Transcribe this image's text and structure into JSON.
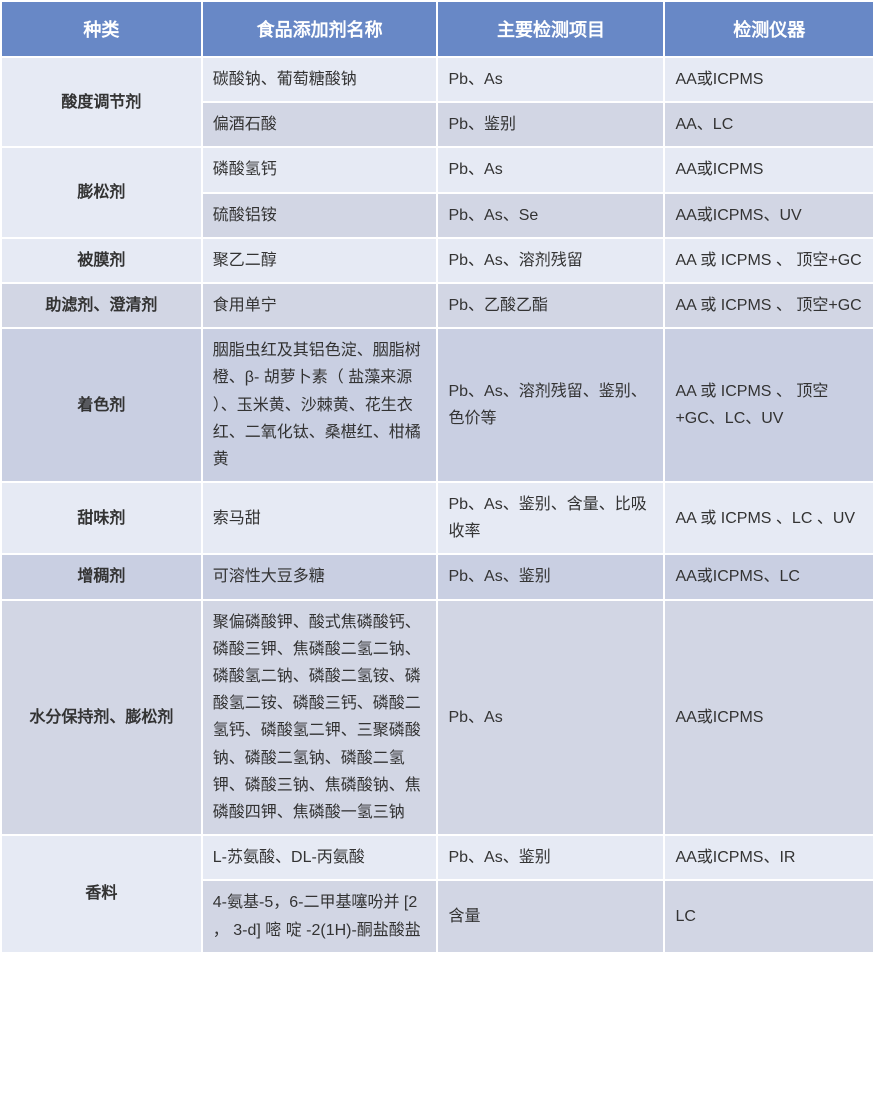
{
  "table": {
    "headers": {
      "category": "种类",
      "additive_name": "食品添加剂名称",
      "test_items": "主要检测项目",
      "instruments": "检测仪器"
    },
    "colors": {
      "header_bg": "#6888c6",
      "header_text": "#ffffff",
      "row_light": "#e6eaf4",
      "row_lighter": "#d2d6e4",
      "row_dark": "#c9cfe2",
      "border": "#ffffff",
      "text": "#333333"
    },
    "fontsize": {
      "header": 18,
      "cell": 16
    },
    "column_widths": [
      "23%",
      "27%",
      "26%",
      "24%"
    ],
    "rows": [
      {
        "category": "酸度调节剂",
        "category_rowspan": 2,
        "name": "碳酸钠、葡萄糖酸钠",
        "test": "Pb、As",
        "instrument": "AA或ICPMS",
        "bg": "row-light"
      },
      {
        "name": "偏酒石酸",
        "test": "Pb、鉴别",
        "instrument": "AA、LC",
        "bg": "row-lighter"
      },
      {
        "category": "膨松剂",
        "category_rowspan": 2,
        "name": "磷酸氢钙",
        "test": "Pb、As",
        "instrument": "AA或ICPMS",
        "bg": "row-light"
      },
      {
        "name": "硫酸铝铵",
        "test": "Pb、As、Se",
        "instrument": "AA或ICPMS、UV",
        "bg": "row-lighter"
      },
      {
        "category": "被膜剂",
        "category_rowspan": 1,
        "name": "聚乙二醇",
        "test": "Pb、As、溶剂残留",
        "instrument": "AA 或 ICPMS 、 顶空+GC",
        "bg": "row-light"
      },
      {
        "category": "助滤剂、澄清剂",
        "category_rowspan": 1,
        "name": "食用单宁",
        "test": "Pb、乙酸乙酯",
        "instrument": "AA 或 ICPMS 、 顶空+GC",
        "bg": "row-lighter"
      },
      {
        "category": "着色剂",
        "category_rowspan": 1,
        "name": "胭脂虫红及其铝色淀、胭脂树橙、β- 胡萝卜素（ 盐藻来源 ）、玉米黄、沙棘黄、花生衣红、二氧化钛、桑椹红、柑橘黄",
        "test": "Pb、As、溶剂残留、鉴别、色价等",
        "instrument": "AA 或 ICPMS 、 顶空+GC、LC、UV",
        "bg": "row-dark"
      },
      {
        "category": "甜味剂",
        "category_rowspan": 1,
        "name": "索马甜",
        "test": "Pb、As、鉴别、含量、比吸收率",
        "instrument": "AA 或 ICPMS 、LC 、UV",
        "bg": "row-light"
      },
      {
        "category": "增稠剂",
        "category_rowspan": 1,
        "name": "可溶性大豆多糖",
        "test": "Pb、As、鉴别",
        "instrument": "AA或ICPMS、LC",
        "bg": "row-dark"
      },
      {
        "category": "水分保持剂、膨松剂",
        "category_rowspan": 1,
        "name": "聚偏磷酸钾、酸式焦磷酸钙、磷酸三钾、焦磷酸二氢二钠、磷酸氢二钠、磷酸二氢铵、磷酸氢二铵、磷酸三钙、磷酸二氢钙、磷酸氢二钾、三聚磷酸钠、磷酸二氢钠、磷酸二氢钾、磷酸三钠、焦磷酸钠、焦磷酸四钾、焦磷酸一氢三钠",
        "test": "Pb、As",
        "instrument": "AA或ICPMS",
        "bg": "row-lighter"
      },
      {
        "category": "香料",
        "category_rowspan": 2,
        "name": "L-苏氨酸、DL-丙氨酸",
        "test": "Pb、As、鉴别",
        "instrument": "AA或ICPMS、IR",
        "bg": "row-light"
      },
      {
        "name": "4-氨基-5，6-二甲基噻吩并 [2 ， 3-d] 嘧 啶 -2(1H)-酮盐酸盐",
        "test": "含量",
        "instrument": "LC",
        "bg": "row-lighter"
      }
    ]
  }
}
